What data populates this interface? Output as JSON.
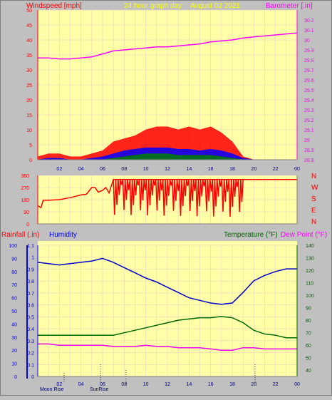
{
  "header": {
    "windspeed_label": "Windspeed [mph]",
    "period_label": "24 hour graph day",
    "date_label": "August 02 2021",
    "barometer_label": "Barometer [.in]"
  },
  "bottom_header": {
    "rainfall_label": "Rainfall (.in)",
    "humidity_label": "Humidity",
    "temperature_label": "Temperature (°F)",
    "dewpoint_label": "Dew Point (°F)"
  },
  "direction_letters": [
    "N",
    "W",
    "S",
    "E",
    "N"
  ],
  "events": {
    "moonrise": "Moon Rise",
    "sunrise": "SunRise"
  },
  "colors": {
    "plot_bg": "#ffffa8",
    "grid": "#e8c8c0",
    "wind": "#ff0000",
    "wind_avg": "#0000ff",
    "wind_min": "#008000",
    "barometer": "#ff00ff",
    "humidity": "#0000cc",
    "temperature": "#006600",
    "dewpoint": "#ee00ee",
    "rain_axis": "#0000ff"
  },
  "chart_data": [
    {
      "type": "area",
      "name": "windspeed-barometer",
      "x_ticks": [
        "02",
        "04",
        "06",
        "08",
        "10",
        "12",
        "14",
        "16",
        "18",
        "20",
        "22",
        "00"
      ],
      "ylim_left": [
        0,
        50
      ],
      "y_ticks_left": [
        "0",
        "5",
        "10",
        "15",
        "20",
        "25",
        "30",
        "35",
        "40",
        "45",
        "50"
      ],
      "ylim_right": [
        28.8,
        30.3
      ],
      "y_ticks_right": [
        "28.8",
        "28.9",
        "29",
        "29.1",
        "29.2",
        "29.3",
        "29.4",
        "29.5",
        "29.6",
        "29.7",
        "29.8",
        "29.9",
        "30",
        "30.1",
        "30.2"
      ],
      "hours": [
        0,
        1,
        2,
        3,
        4,
        5,
        6,
        7,
        8,
        9,
        10,
        11,
        12,
        13,
        14,
        15,
        16,
        17,
        18,
        19,
        20,
        21,
        22,
        23,
        24
      ],
      "series": [
        {
          "name": "Windspeed",
          "values": [
            1,
            2,
            2,
            1,
            1,
            2,
            3,
            6,
            7,
            8,
            10,
            11,
            11,
            10,
            11,
            10,
            11,
            9,
            6,
            1,
            0,
            0,
            0,
            0,
            0
          ]
        },
        {
          "name": "Wind Average",
          "values": [
            0,
            0.5,
            0.5,
            0,
            0,
            0.5,
            1,
            2,
            3,
            3.5,
            4,
            4,
            4,
            3.5,
            3.5,
            3,
            3.5,
            3,
            2,
            0.5,
            0,
            0,
            0,
            0,
            0
          ]
        },
        {
          "name": "Wind Minimum",
          "values": [
            0,
            0,
            0,
            0,
            0,
            0,
            0,
            0.5,
            1,
            1.5,
            2,
            2,
            2,
            1.5,
            1.5,
            1.5,
            1.5,
            1,
            0.5,
            0,
            0,
            0,
            0,
            0,
            0
          ]
        },
        {
          "name": "Barometer",
          "values": [
            29.82,
            29.82,
            29.81,
            29.81,
            29.82,
            29.83,
            29.86,
            29.89,
            29.9,
            29.91,
            29.92,
            29.93,
            29.93,
            29.94,
            29.95,
            29.96,
            29.98,
            29.99,
            30.0,
            30.02,
            30.03,
            30.04,
            30.05,
            30.06,
            30.07
          ]
        }
      ]
    },
    {
      "type": "line",
      "name": "wind-direction",
      "x_ticks": [
        "02",
        "04",
        "06",
        "08",
        "10",
        "12",
        "14",
        "16",
        "18",
        "20",
        "22",
        "00"
      ],
      "ylim": [
        0,
        360
      ],
      "y_ticks": [
        "0",
        "90",
        "180",
        "270",
        "360"
      ],
      "hours": [
        0,
        0.3,
        0.5,
        1,
        2,
        3,
        3.5,
        4,
        4.5,
        5,
        5.3,
        5.6,
        6,
        6.3,
        6.6,
        7,
        24
      ],
      "series": [
        {
          "name": "Wind Direction",
          "values": [
            135,
            120,
            175,
            175,
            180,
            195,
            205,
            215,
            220,
            270,
            270,
            235,
            250,
            270,
            230,
            330,
            330
          ]
        }
      ]
    },
    {
      "type": "line",
      "name": "humidity-temperature",
      "x_ticks": [
        "02",
        "04",
        "06",
        "08",
        "10",
        "12",
        "14",
        "16",
        "18",
        "20",
        "22",
        "00"
      ],
      "ylim_rain": [
        0,
        100
      ],
      "y_ticks_rain": [
        "0",
        "10",
        "20",
        "30",
        "40",
        "50",
        "60",
        "70",
        "80",
        "90",
        "100"
      ],
      "ylim_humidity": [
        0,
        1.1
      ],
      "y_ticks_humidity": [
        "0",
        "0.1",
        "0.2",
        "0.3",
        "0.4",
        "0.5",
        "0.6",
        "0.7",
        "0.8",
        "0.9",
        "1",
        "1.1"
      ],
      "ylim_temp": [
        35,
        140
      ],
      "y_ticks_temp": [
        "40",
        "50",
        "60",
        "70",
        "80",
        "90",
        "100",
        "110",
        "120",
        "130",
        "140"
      ],
      "hours": [
        0,
        1,
        2,
        3,
        4,
        5,
        6,
        7,
        8,
        9,
        10,
        11,
        12,
        13,
        14,
        15,
        16,
        17,
        18,
        19,
        20,
        21,
        22,
        23,
        24
      ],
      "series": [
        {
          "name": "Humidity",
          "values": [
            87,
            86,
            85,
            86,
            87,
            88,
            90,
            87,
            83,
            79,
            75,
            72,
            68,
            64,
            60,
            58,
            56,
            55,
            56,
            64,
            73,
            77,
            80,
            82,
            82
          ]
        },
        {
          "name": "Temperature",
          "values": [
            68,
            68,
            68,
            68,
            68,
            68,
            68,
            68,
            70,
            72,
            74,
            76,
            78,
            80,
            81,
            82,
            82,
            83,
            82,
            78,
            72,
            69,
            68,
            66,
            66
          ]
        },
        {
          "name": "Dew Point",
          "values": [
            61,
            61,
            60,
            60,
            60,
            60,
            60,
            59,
            59,
            59,
            60,
            59,
            59,
            58,
            58,
            58,
            57,
            56,
            56,
            58,
            58,
            57,
            57,
            57,
            57
          ]
        }
      ]
    }
  ]
}
